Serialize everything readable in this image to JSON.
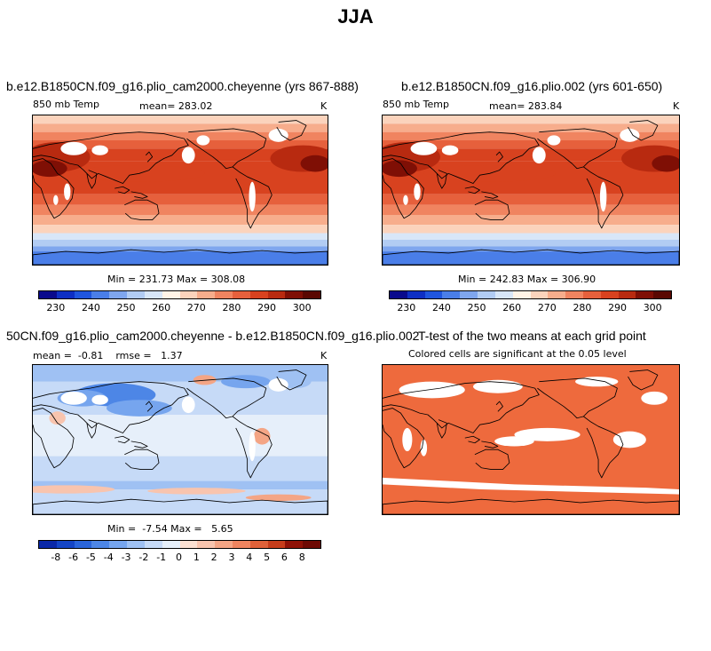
{
  "page_title": "JJA",
  "colors": {
    "abs_scale": [
      "#0a0a8c",
      "#0e2fc4",
      "#1f55de",
      "#4a7ee8",
      "#7fa6ee",
      "#b2ccf3",
      "#d8e6f8",
      "#fff3e6",
      "#fbd3bc",
      "#f7ad8c",
      "#f08460",
      "#e6603c",
      "#d8421f",
      "#b82a10",
      "#7f0f05"
    ],
    "diff_scale": [
      "#0a28a8",
      "#1445c6",
      "#2a65db",
      "#4d86e6",
      "#76a5ee",
      "#9fc1f3",
      "#c6daf7",
      "#e6effa",
      "#fbe0d2",
      "#f8c4ae",
      "#f4a585",
      "#ee845f",
      "#e06139",
      "#c63d1b",
      "#8f1207"
    ],
    "ttest": "#ee6a3d"
  },
  "panels": [
    {
      "title": "b.e12.B1850CN.f09_g16.plio_cam2000.cheyenne (yrs 867-888)",
      "left_label": "850 mb Temp",
      "mean_label": "mean= 283.02",
      "units": "K",
      "stats": "Min = 231.73 Max = 308.08"
    },
    {
      "title": "b.e12.B1850CN.f09_g16.plio.002 (yrs 601-650)",
      "left_label": "850 mb Temp",
      "mean_label": "mean= 283.84",
      "units": "K",
      "stats": "Min = 242.83 Max = 306.90"
    },
    {
      "title": "50CN.f09_g16.plio_cam2000.cheyenne - b.e12.B1850CN.f09_g16.plio.002",
      "left_label": "mean =  -0.81    rmse =   1.37",
      "units": "K",
      "stats": "Min =  -7.54 Max =   5.65"
    },
    {
      "title": "T-test of the two means at each grid point",
      "subtitle": "Colored cells are significant at the 0.05 level"
    }
  ],
  "chart_data": [
    {
      "type": "heatmap",
      "title": "b.e12.B1850CN.f09_g16.plio_cam2000.cheyenne (yrs 867-888)",
      "variable": "850 mb Temp",
      "units": "K",
      "mean": 283.02,
      "min": 231.73,
      "max": 308.08,
      "colorbar_ticks": [
        "230",
        "240",
        "250",
        "260",
        "270",
        "280",
        "290",
        "300"
      ],
      "colorbar_levels": [
        225,
        230,
        235,
        240,
        245,
        250,
        255,
        260,
        265,
        270,
        275,
        280,
        285,
        290,
        295,
        300,
        305
      ]
    },
    {
      "type": "heatmap",
      "title": "b.e12.B1850CN.f09_g16.plio.002 (yrs 601-650)",
      "variable": "850 mb Temp",
      "units": "K",
      "mean": 283.84,
      "min": 242.83,
      "max": 306.9,
      "colorbar_ticks": [
        "230",
        "240",
        "250",
        "260",
        "270",
        "280",
        "290",
        "300"
      ],
      "colorbar_levels": [
        225,
        230,
        235,
        240,
        245,
        250,
        255,
        260,
        265,
        270,
        275,
        280,
        285,
        290,
        295,
        300,
        305
      ]
    },
    {
      "type": "heatmap",
      "title": "50CN.f09_g16.plio_cam2000.cheyenne - b.e12.B1850CN.f09_g16.plio.002",
      "units": "K",
      "mean": -0.81,
      "rmse": 1.37,
      "min": -7.54,
      "max": 5.65,
      "colorbar_ticks": [
        "-8",
        "-6",
        "-5",
        "-4",
        "-3",
        "-2",
        "-1",
        "0",
        "1",
        "2",
        "3",
        "4",
        "5",
        "6",
        "8"
      ]
    },
    {
      "type": "heatmap",
      "title": "T-test of the two means at each grid point",
      "subtitle": "Colored cells are significant at the 0.05 level",
      "significance_level": 0.05
    }
  ]
}
